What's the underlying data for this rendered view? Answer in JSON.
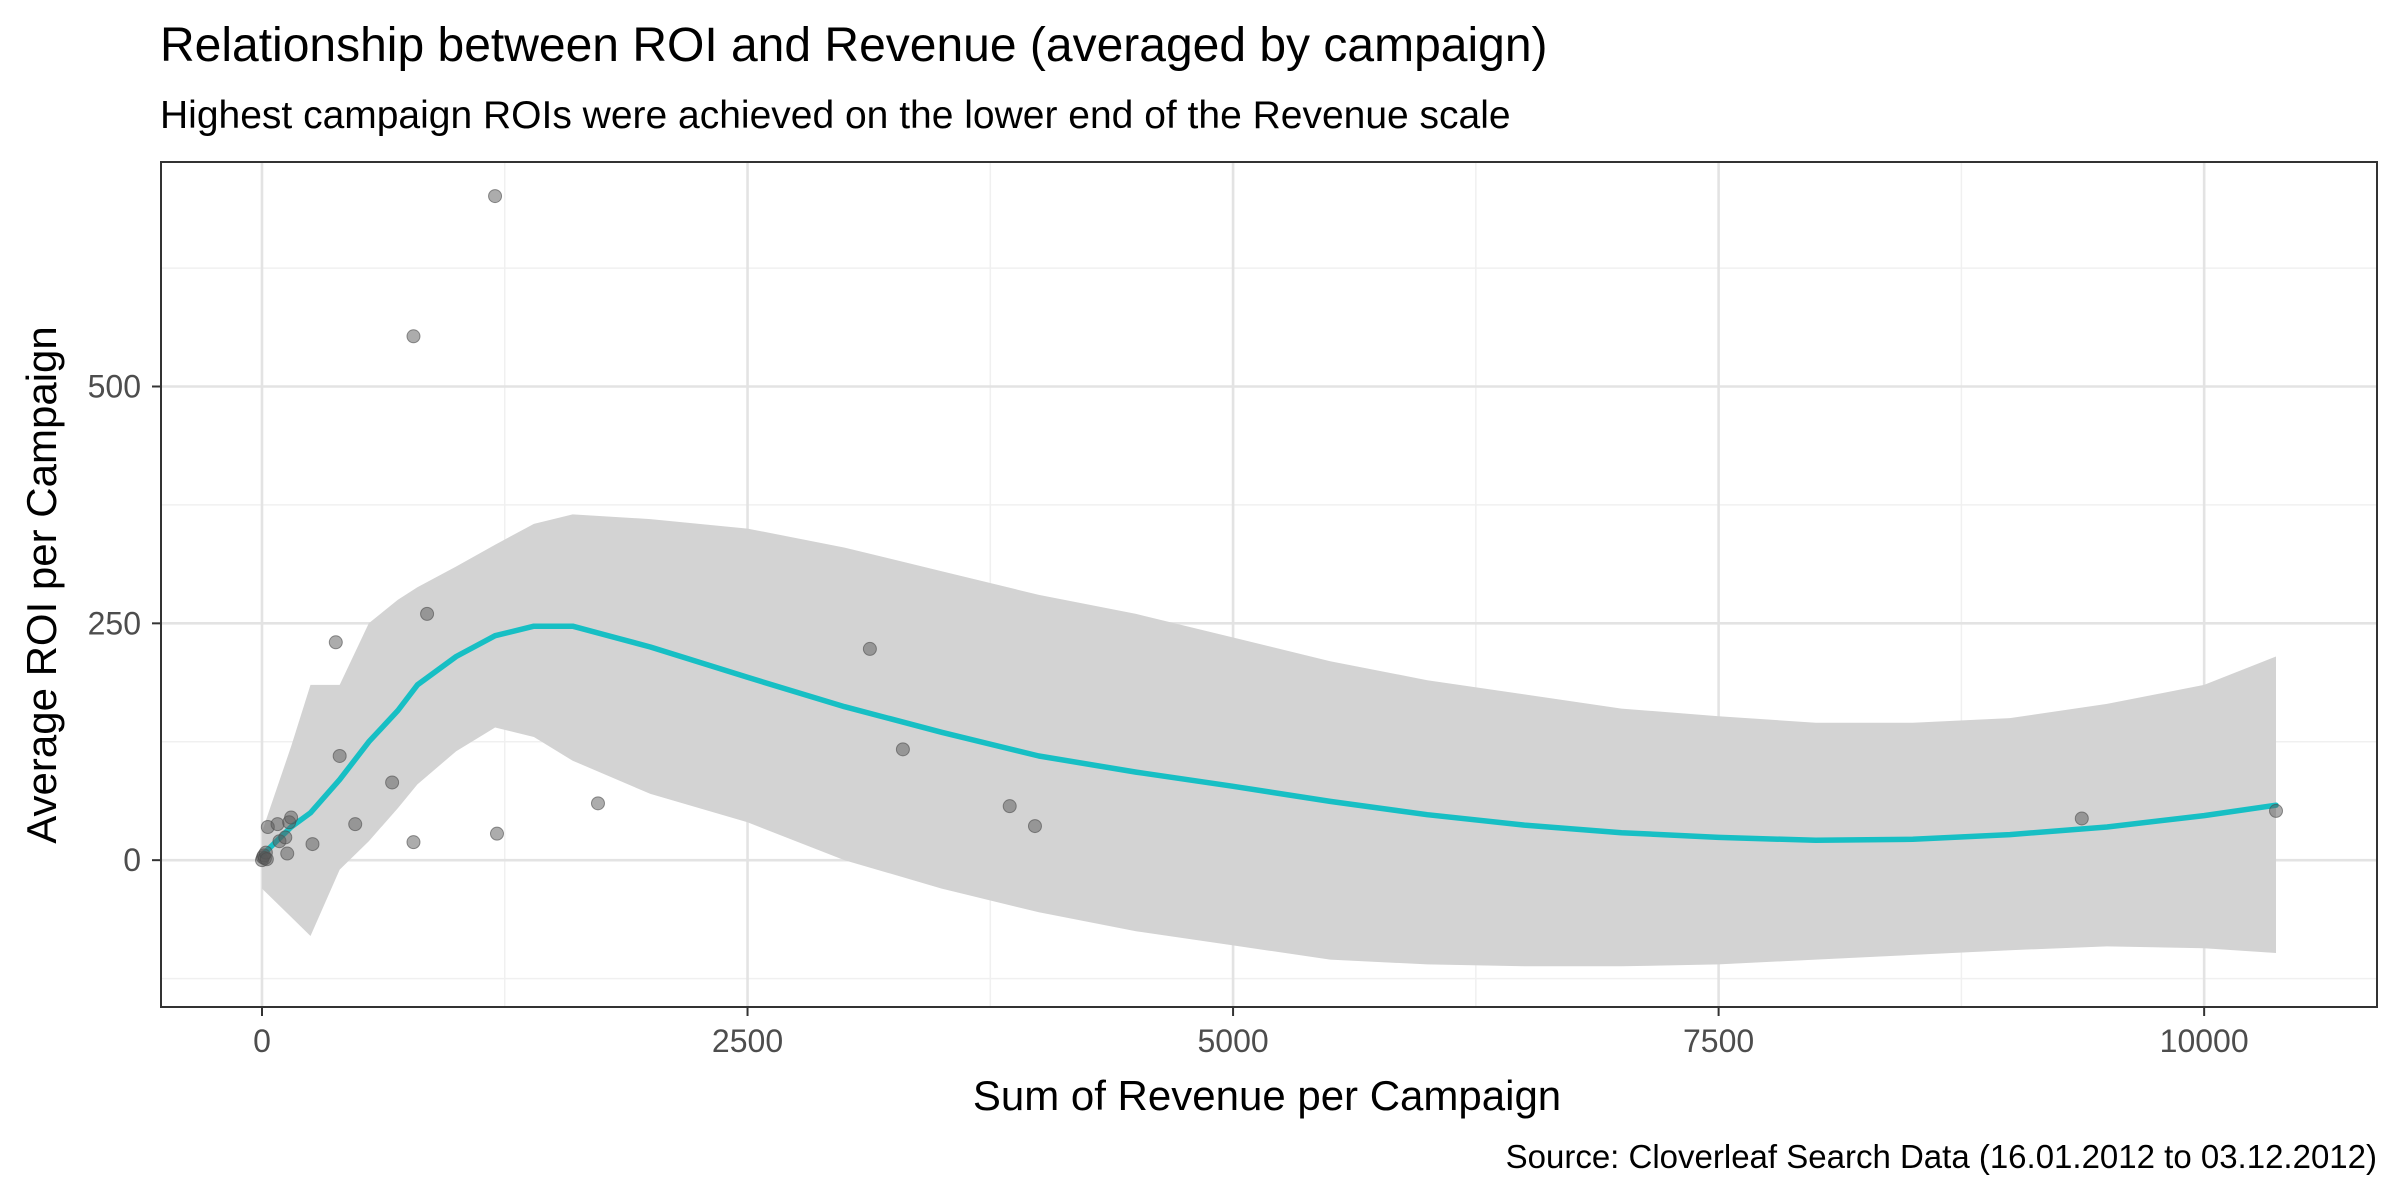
{
  "chart_data": {
    "type": "scatter",
    "title": "Relationship between ROI and Revenue (averaged by campaign)",
    "subtitle": "Highest campaign ROIs were achieved on the lower end of the Revenue scale",
    "caption": "Source: Cloverleaf Search Data (16.01.2012 to 03.12.2012)",
    "xlabel": "Sum of Revenue per Campaign",
    "ylabel": "Average ROI per Campaign",
    "xlim": [
      -520,
      10890
    ],
    "ylim": [
      -155,
      737
    ],
    "x_ticks": [
      0,
      2500,
      5000,
      7500,
      10000
    ],
    "x_tick_labels": [
      "0",
      "2500",
      "5000",
      "7500",
      "10000"
    ],
    "y_ticks": [
      0,
      250,
      500
    ],
    "y_tick_labels": [
      "0",
      "250",
      "500"
    ],
    "x_minor": [
      1250,
      3750,
      6250,
      8750
    ],
    "y_minor": [
      -125,
      125,
      375,
      625
    ],
    "grid": true,
    "point_color": "#595959",
    "smooth_color": "#17bfc4",
    "band_color": "#d3d3d3",
    "points": [
      {
        "x": 0,
        "y": 0
      },
      {
        "x": 5,
        "y": 3
      },
      {
        "x": 10,
        "y": 5
      },
      {
        "x": 15,
        "y": 2
      },
      {
        "x": 20,
        "y": 8
      },
      {
        "x": 25,
        "y": 1
      },
      {
        "x": 30,
        "y": 35
      },
      {
        "x": 80,
        "y": 38
      },
      {
        "x": 90,
        "y": 20
      },
      {
        "x": 120,
        "y": 24
      },
      {
        "x": 130,
        "y": 7
      },
      {
        "x": 140,
        "y": 40
      },
      {
        "x": 150,
        "y": 45
      },
      {
        "x": 260,
        "y": 17
      },
      {
        "x": 380,
        "y": 230
      },
      {
        "x": 400,
        "y": 110
      },
      {
        "x": 480,
        "y": 38
      },
      {
        "x": 670,
        "y": 82
      },
      {
        "x": 780,
        "y": 553
      },
      {
        "x": 780,
        "y": 19
      },
      {
        "x": 850,
        "y": 260
      },
      {
        "x": 1200,
        "y": 701
      },
      {
        "x": 1210,
        "y": 28
      },
      {
        "x": 1730,
        "y": 60
      },
      {
        "x": 3130,
        "y": 223
      },
      {
        "x": 3300,
        "y": 117
      },
      {
        "x": 3850,
        "y": 57
      },
      {
        "x": 3980,
        "y": 36
      },
      {
        "x": 9370,
        "y": 44
      },
      {
        "x": 10370,
        "y": 52
      }
    ],
    "smooth": {
      "x": [
        0,
        150,
        250,
        400,
        550,
        700,
        800,
        1000,
        1200,
        1400,
        1600,
        2000,
        2500,
        3000,
        3500,
        4000,
        4500,
        5000,
        5500,
        6000,
        6500,
        7000,
        7500,
        8000,
        8500,
        9000,
        9500,
        10000,
        10370
      ],
      "y": [
        5,
        35,
        50,
        85,
        125,
        158,
        185,
        215,
        237,
        247,
        247,
        225,
        193,
        162,
        135,
        110,
        93,
        78,
        62,
        48,
        37,
        29,
        24,
        21,
        22,
        27,
        35,
        47,
        58
      ],
      "lower": [
        -30,
        -60,
        -80,
        -10,
        20,
        55,
        80,
        115,
        140,
        130,
        105,
        70,
        40,
        0,
        -30,
        -55,
        -75,
        -90,
        -105,
        -110,
        -112,
        -112,
        -110,
        -105,
        -100,
        -95,
        -91,
        -93,
        -98
      ],
      "upper": [
        30,
        120,
        185,
        185,
        250,
        275,
        288,
        310,
        333,
        355,
        365,
        360,
        350,
        330,
        305,
        280,
        260,
        235,
        210,
        190,
        175,
        160,
        152,
        145,
        145,
        150,
        165,
        185,
        215
      ]
    }
  }
}
